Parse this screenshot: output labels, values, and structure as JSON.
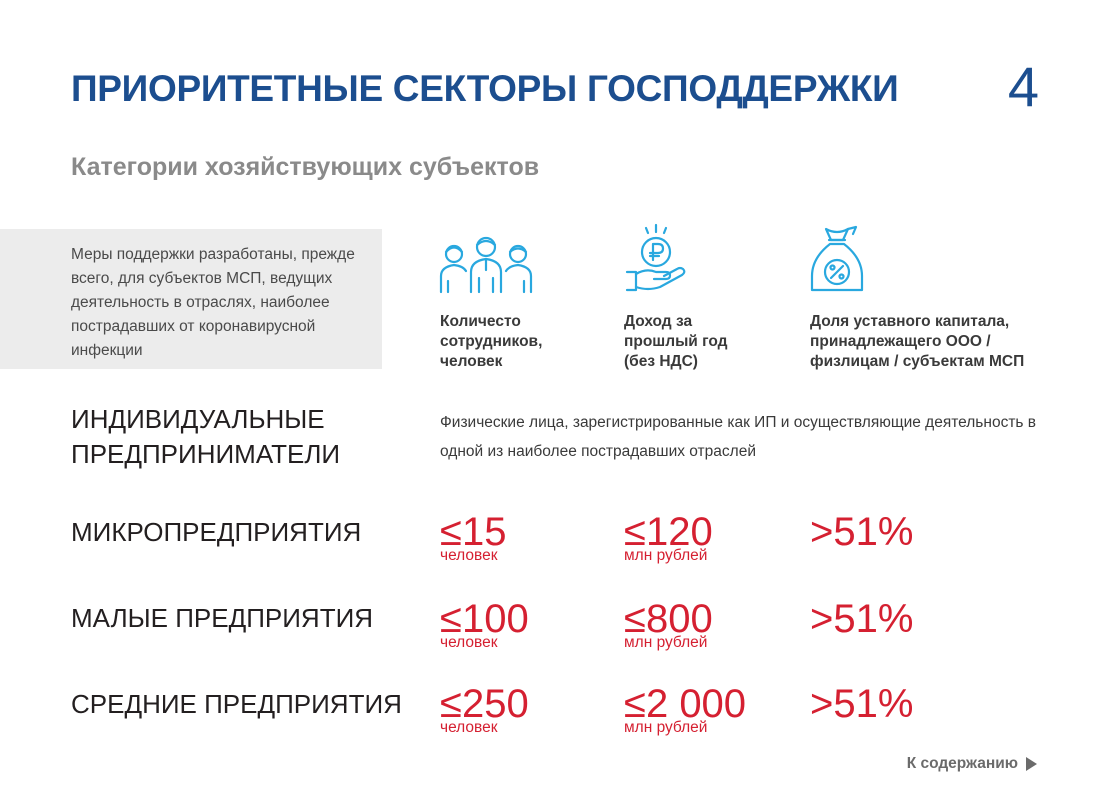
{
  "header": {
    "title": "ПРИОРИТЕТНЫЕ СЕКТОРЫ ГОСПОДДЕРЖКИ",
    "page_number": "4"
  },
  "subtitle": "Категории хозяйствующих субъектов",
  "note": "Меры поддержки разработаны, прежде всего, для субъектов МСП, ведущих деятельность в отраслях, наиболее пострадавших от коронавирусной инфекции",
  "columns": [
    {
      "icon": "people-icon",
      "label": "Количесто сотрудников, человек"
    },
    {
      "icon": "ruble-coin-hand-icon",
      "label": "Доход за прошлый год (без НДС)"
    },
    {
      "icon": "money-bag-percent-icon",
      "label": "Доля уставного капитала, принадлежащего ООО / физлицам / субъектам МСП"
    }
  ],
  "rows": {
    "ip": {
      "label": "ИНДИВИДУАЛЬНЫЕ ПРЕДПРИНИМАТЕЛИ",
      "description": "Физические лица, зарегистрированные как ИП и осуществляющие деятельность в одной из наиболее пострадавших отраслей"
    },
    "micro": {
      "label": "МИКРОПРЕДПРИЯТИЯ",
      "employees": "≤15",
      "employees_unit": "человек",
      "revenue": "≤120",
      "revenue_unit": "млн рублей",
      "share": ">51%"
    },
    "small": {
      "label": "МАЛЫЕ ПРЕДПРИЯТИЯ",
      "employees": "≤100",
      "employees_unit": "человек",
      "revenue": "≤800",
      "revenue_unit": "млн рублей",
      "share": ">51%"
    },
    "medium": {
      "label": "СРЕДНИЕ ПРЕДПРИЯТИЯ",
      "employees": "≤250",
      "employees_unit": "человек",
      "revenue": "≤2 000",
      "revenue_unit": "млн рублей",
      "share": ">51%"
    }
  },
  "footer": {
    "contents_link": "К содержанию"
  },
  "colors": {
    "title_blue": "#1c4e8f",
    "accent_red": "#d52031",
    "icon_blue": "#29a8df",
    "note_bg": "#ececec"
  }
}
